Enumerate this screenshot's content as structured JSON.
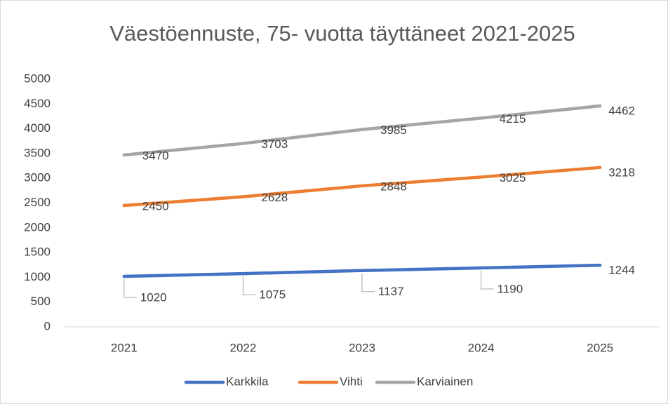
{
  "chart_data": {
    "type": "line",
    "title": "Väestöennuste, 75- vuotta täyttäneet 2021-2025",
    "categories": [
      "2021",
      "2022",
      "2023",
      "2024",
      "2025"
    ],
    "series": [
      {
        "name": "Karkkila",
        "color": "#4472c4",
        "values": [
          1020,
          1075,
          1137,
          1190,
          1244
        ]
      },
      {
        "name": "Vihti",
        "color": "#ed7d31",
        "values": [
          2450,
          2628,
          2848,
          3025,
          3218
        ]
      },
      {
        "name": "Karviainen",
        "color": "#a5a5a5",
        "values": [
          3470,
          3703,
          3985,
          4215,
          4462
        ]
      }
    ],
    "ylim": [
      0,
      5000
    ],
    "yticks": [
      0,
      500,
      1000,
      1500,
      2000,
      2500,
      3000,
      3500,
      4000,
      4500,
      5000
    ],
    "grid": false,
    "legend": "bottom"
  }
}
